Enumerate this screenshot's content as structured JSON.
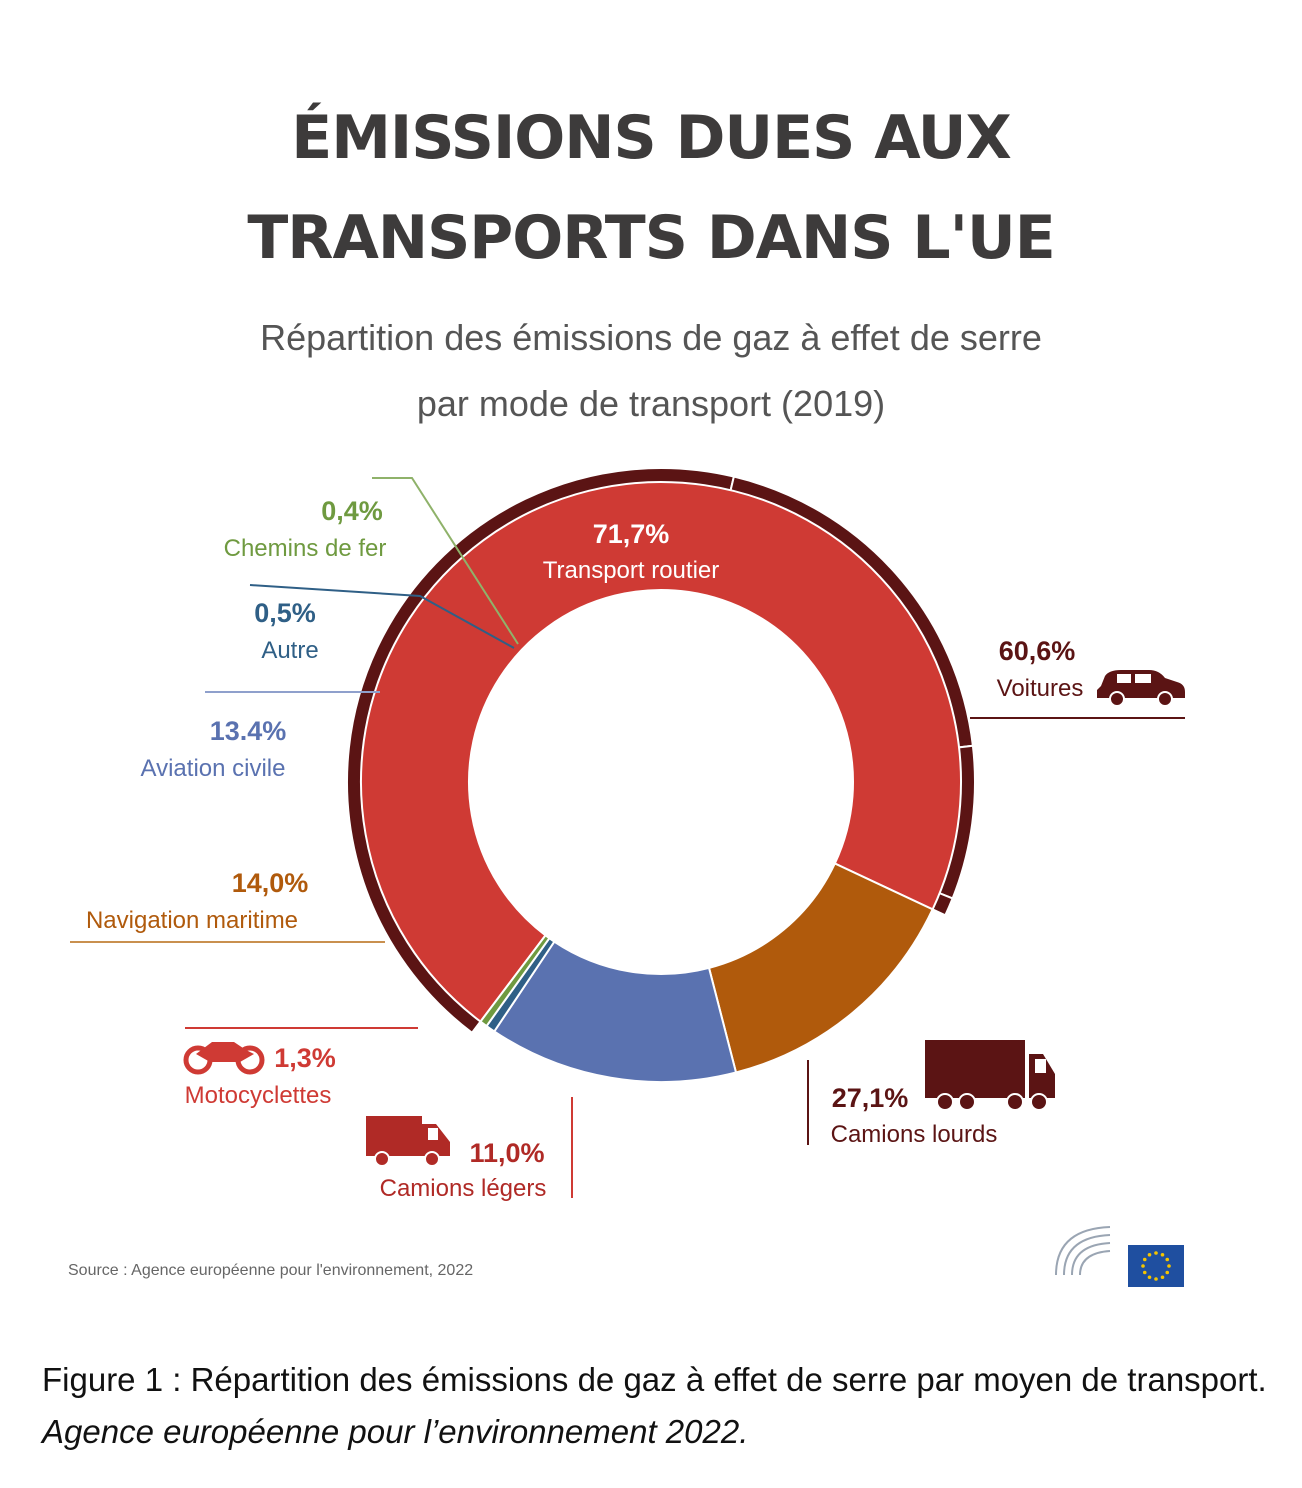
{
  "header": {
    "title_line1": "ÉMISSIONS DUES AUX",
    "title_line2": "TRANSPORTS DANS L'UE",
    "subtitle_line1": "Répartition des émissions de gaz à effet de serre",
    "subtitle_line2": "par mode de transport (2019)"
  },
  "chart_data": {
    "type": "pie",
    "donut": true,
    "slices": [
      {
        "label": "Transport routier",
        "value_label": "71,7%",
        "value": 71.7,
        "color": "#cf3a34"
      },
      {
        "label": "Navigation maritime",
        "value_label": "14,0%",
        "value": 14.0,
        "color": "#b05a0c"
      },
      {
        "label": "Aviation civile",
        "value_label": "13.4%",
        "value": 13.4,
        "color": "#5a72b0"
      },
      {
        "label": "Autre",
        "value_label": "0,5%",
        "value": 0.5,
        "color": "#2f5f86"
      },
      {
        "label": "Chemins de fer",
        "value_label": "0,4%",
        "value": 0.4,
        "color": "#6f9a40"
      }
    ],
    "road_breakdown": [
      {
        "label": "Voitures",
        "value_label": "60,6%",
        "value": 60.6,
        "color": "#5b1414"
      },
      {
        "label": "Camions lourds",
        "value_label": "27,1%",
        "value": 27.1,
        "color": "#5b1414"
      },
      {
        "label": "Camions légers",
        "value_label": "11,0%",
        "value": 11.0,
        "color": "#5b1414"
      },
      {
        "label": "Motocyclettes",
        "value_label": "1,3%",
        "value": 1.3,
        "color": "#5b1414"
      }
    ]
  },
  "source_note": "Source : Agence européenne pour l'environnement, 2022",
  "caption": {
    "text": "Figure 1 : Répartition des émissions de gaz à effet de serre par moyen de transport. ",
    "source": "Agence européenne pour l’environnement 2022."
  },
  "colors": {
    "road": "#cf3a34",
    "road_dark": "#5b1414",
    "maritime": "#b05a0c",
    "aviation": "#5a72b0",
    "other": "#2f5f86",
    "rail": "#6f9a40",
    "eu_blue": "#1f4fa0",
    "eu_star": "#f4c400"
  },
  "icons": [
    "car-icon",
    "heavy-truck-icon",
    "light-truck-icon",
    "motorcycle-icon",
    "european-parliament-logo"
  ]
}
